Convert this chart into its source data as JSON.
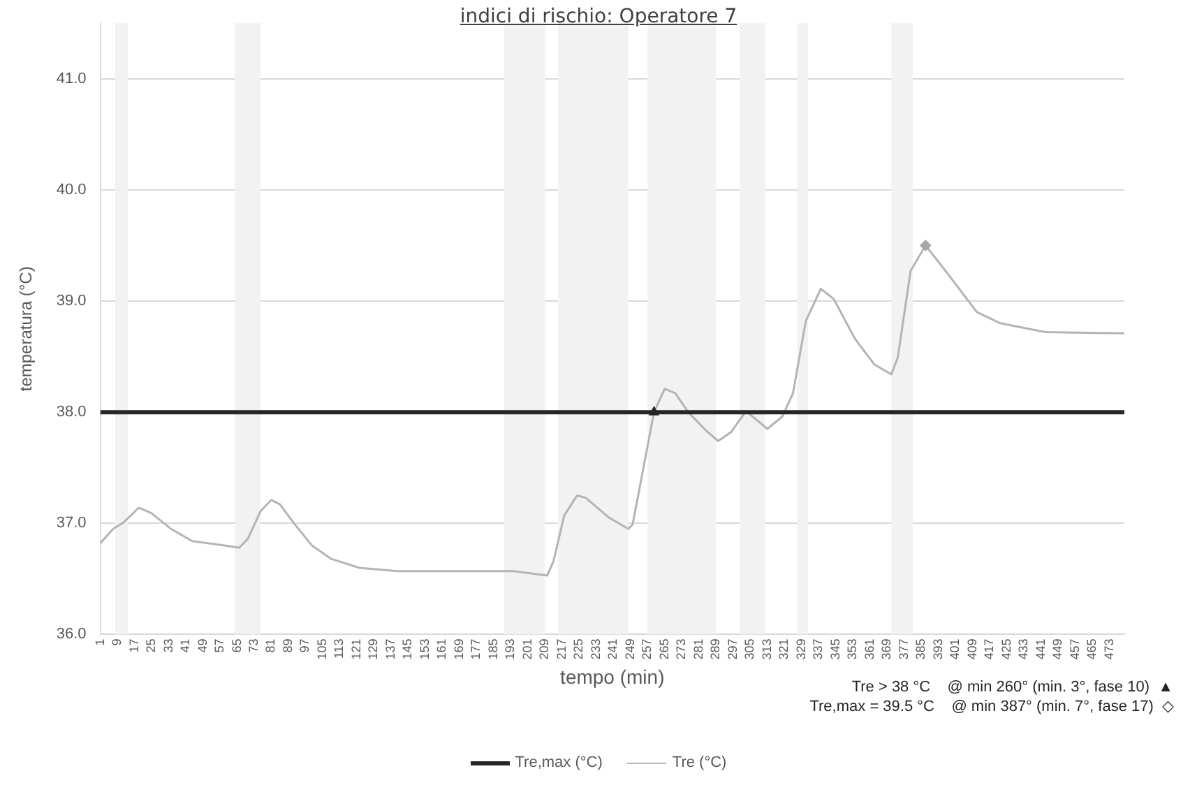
{
  "chart_data": {
    "type": "line",
    "title": "indici di rischio: Operatore 7",
    "xlabel": "tempo (min)",
    "ylabel": "temperatura (°C)",
    "xlim": [
      1,
      480
    ],
    "xticks": [
      1,
      9,
      17,
      25,
      33,
      41,
      49,
      57,
      65,
      73,
      81,
      89,
      97,
      105,
      113,
      121,
      129,
      137,
      145,
      153,
      161,
      169,
      177,
      185,
      193,
      201,
      209,
      217,
      225,
      233,
      241,
      249,
      257,
      265,
      273,
      281,
      289,
      297,
      305,
      313,
      321,
      329,
      337,
      345,
      353,
      361,
      369,
      377,
      385,
      393,
      401,
      409,
      417,
      425,
      433,
      441,
      449,
      457,
      465,
      473
    ],
    "ylim": [
      36,
      41.5
    ],
    "yticks": [
      {
        "value": 36,
        "label": "36.0"
      },
      {
        "value": 37,
        "label": "37.0"
      },
      {
        "value": 38,
        "label": "38.0"
      },
      {
        "value": 39,
        "label": "39.0"
      },
      {
        "value": 40,
        "label": "40.0"
      },
      {
        "value": 41,
        "label": "41.0"
      }
    ],
    "grid": "y",
    "legend": "bottom",
    "series": [
      {
        "name": "Tre,max (°C)",
        "color": "#262626",
        "x": [
          1,
          480
        ],
        "values": [
          38,
          38
        ]
      },
      {
        "name": "Tre (°C)",
        "color": "#b4b4b4",
        "x": [
          1,
          7,
          12,
          19,
          25,
          34,
          44,
          59,
          66,
          70,
          76,
          81,
          85,
          92,
          100,
          109,
          122,
          140,
          194,
          202,
          210,
          213,
          218,
          224,
          228,
          239,
          248,
          250,
          260,
          265,
          270,
          276,
          284,
          290,
          296,
          303,
          313,
          320,
          325,
          331,
          338,
          344,
          354,
          363,
          371,
          374,
          380,
          387,
          398,
          411,
          422,
          443,
          480
        ],
        "values": [
          36.82,
          36.95,
          37.01,
          37.14,
          37.09,
          36.95,
          36.84,
          36.8,
          36.78,
          36.86,
          37.11,
          37.21,
          37.17,
          36.99,
          36.8,
          36.68,
          36.6,
          36.57,
          36.57,
          36.55,
          36.53,
          36.66,
          37.07,
          37.25,
          37.23,
          37.05,
          36.95,
          36.99,
          38.0,
          38.21,
          38.17,
          38.0,
          37.84,
          37.74,
          37.82,
          38.01,
          37.85,
          37.96,
          38.17,
          38.82,
          39.11,
          39.02,
          38.66,
          38.43,
          38.34,
          38.49,
          39.27,
          39.5,
          39.23,
          38.9,
          38.8,
          38.72,
          38.71
        ]
      },
      {
        "type": "scatter",
        "marker": "triangle",
        "color": "#262626",
        "x": [
          260
        ],
        "values": [
          38
        ]
      },
      {
        "type": "scatter",
        "marker": "diamond",
        "color": "#a6a6a6",
        "x": [
          387
        ],
        "values": [
          39.5
        ]
      }
    ],
    "bands": [
      {
        "axis": "x",
        "from": 8,
        "to": 14,
        "color": "#f2f2f2"
      },
      {
        "axis": "x",
        "from": 64,
        "to": 76,
        "color": "#f2f2f2"
      },
      {
        "axis": "x",
        "from": 190,
        "to": 209,
        "color": "#f2f2f2"
      },
      {
        "axis": "x",
        "from": 215,
        "to": 248,
        "color": "#f2f2f2"
      },
      {
        "axis": "x",
        "from": 257,
        "to": 289,
        "color": "#f2f2f2"
      },
      {
        "axis": "x",
        "from": 300,
        "to": 312,
        "color": "#f2f2f2"
      },
      {
        "axis": "x",
        "from": 327,
        "to": 332,
        "color": "#f2f2f2"
      },
      {
        "axis": "x",
        "from": 371,
        "to": 381,
        "color": "#f2f2f2"
      }
    ],
    "annotations": [
      "Tre > 38 °C    @ min 260° (min. 3°, fase 10)  ▲",
      "Tre,max = 39.5 °C    @ min 387° (min. 7°, fase 17)  ◇"
    ]
  }
}
